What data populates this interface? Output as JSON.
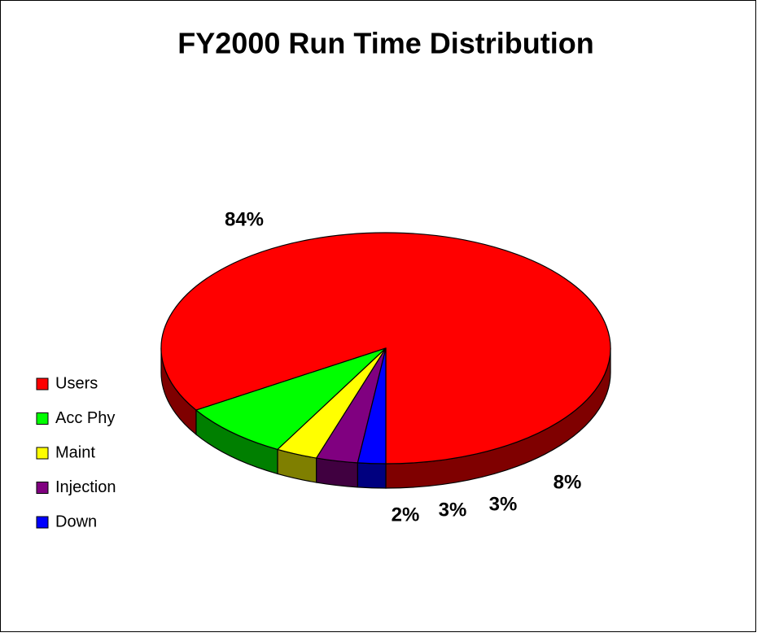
{
  "chart_data": {
    "type": "pie",
    "title": "FY2000 Run Time Distribution",
    "categories": [
      "Users",
      "Acc Phy",
      "Maint",
      "Injection",
      "Down"
    ],
    "values": [
      84,
      8,
      3,
      3,
      2
    ],
    "value_labels": [
      "84%",
      "8%",
      "3%",
      "3%",
      "2%"
    ],
    "colors": [
      "#ff0000",
      "#00ff00",
      "#ffff00",
      "#800080",
      "#0000ff"
    ],
    "legend": "left"
  }
}
